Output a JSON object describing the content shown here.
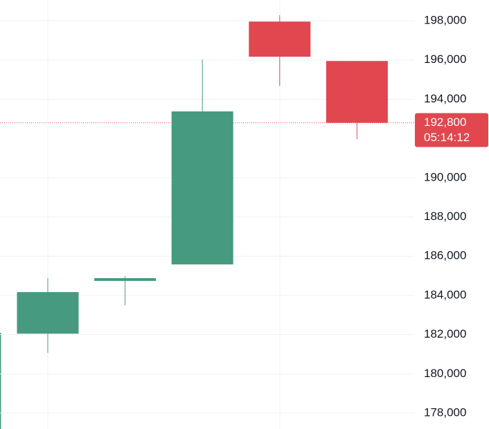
{
  "chart_data": {
    "type": "candlestick",
    "open": [
      182050,
      184740,
      185580,
      197960,
      195950
    ],
    "high": [
      184880,
      184980,
      196020,
      198280,
      195950
    ],
    "low": [
      181070,
      183500,
      185580,
      194680,
      191970
    ],
    "close": [
      184170,
      184880,
      193380,
      196170,
      192800
    ],
    "up_color": "#459a80",
    "down_color": "#e0474f",
    "ylim": [
      177190,
      199060
    ],
    "yticks": [
      {
        "value": 178000,
        "label": "178,000"
      },
      {
        "value": 180000,
        "label": "180,000"
      },
      {
        "value": 182000,
        "label": "182,000"
      },
      {
        "value": 184000,
        "label": "184,000"
      },
      {
        "value": 186000,
        "label": "186,000"
      },
      {
        "value": 188000,
        "label": "188,000"
      },
      {
        "value": 190000,
        "label": "190,000"
      },
      {
        "value": 194000,
        "label": "194,000"
      },
      {
        "value": 196000,
        "label": "196,000"
      },
      {
        "value": 198000,
        "label": "198,000"
      }
    ],
    "grid": true,
    "last_price": {
      "value": 192800,
      "label": "192,800",
      "countdown": "05:14:12"
    }
  }
}
